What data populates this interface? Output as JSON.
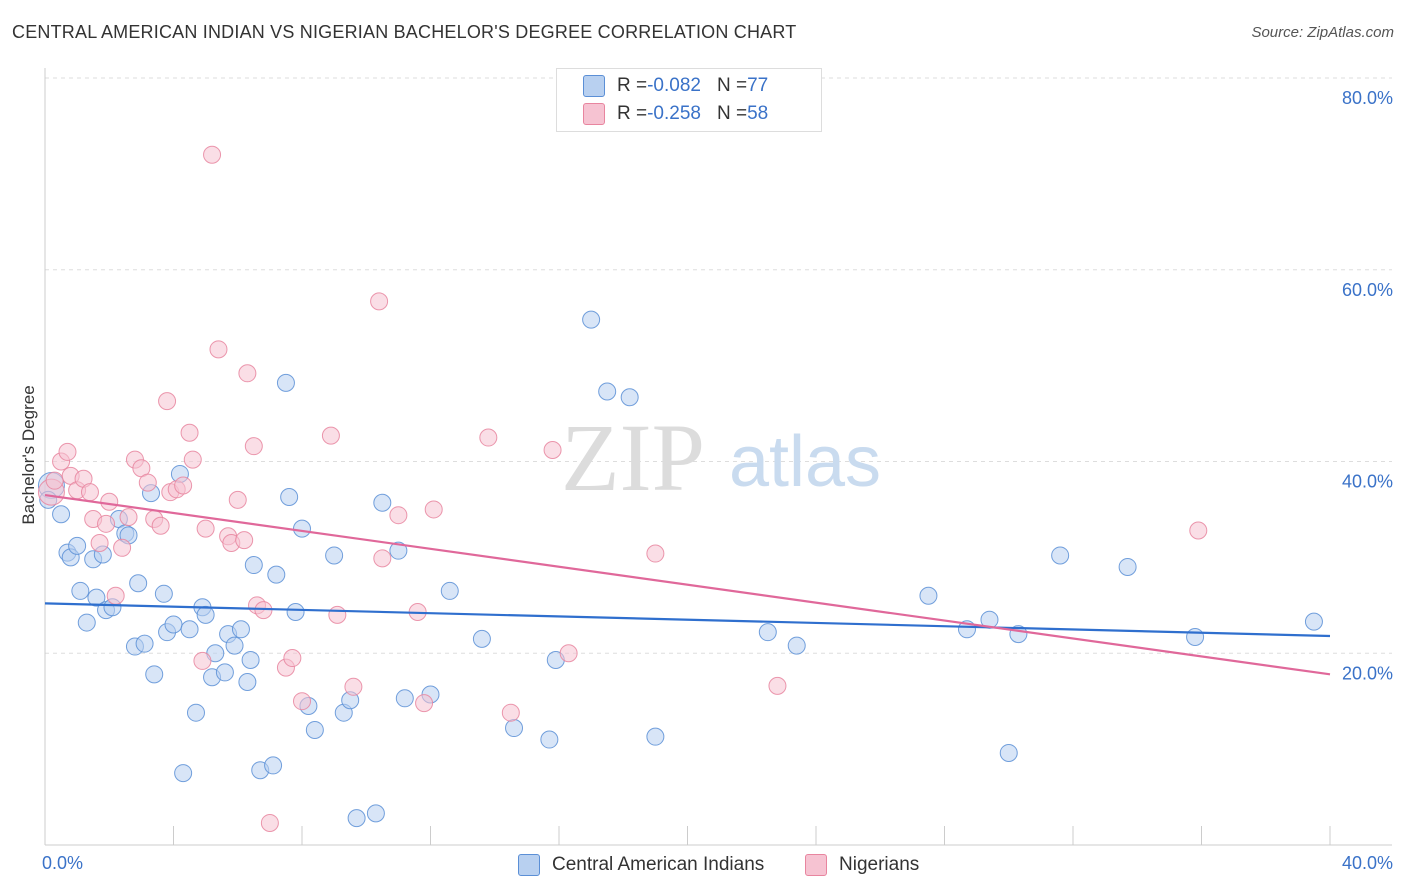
{
  "chart_data": {
    "type": "scatter",
    "title": "CENTRAL AMERICAN INDIAN VS NIGERIAN BACHELOR'S DEGREE CORRELATION CHART",
    "source": "Source: ZipAtlas.com",
    "ylabel": "Bachelor's Degree",
    "xlim": [
      0,
      40
    ],
    "ylim": [
      0,
      80
    ],
    "x_tick_labels": [
      "0.0%",
      "40.0%"
    ],
    "y_tick_labels": [
      "20.0%",
      "40.0%",
      "60.0%",
      "80.0%"
    ],
    "y_tick_values": [
      20,
      40,
      60,
      80
    ],
    "watermark": {
      "zip": "ZIP",
      "atlas": "atlas"
    },
    "legend_stats": [
      {
        "r_label": "R = ",
        "r_value": "-0.082",
        "n_label": "N = ",
        "n_value": "77"
      },
      {
        "r_label": "R = ",
        "r_value": "-0.258",
        "n_label": "N = ",
        "n_value": "58"
      }
    ],
    "series": [
      {
        "name": "Central American Indians",
        "color": "#5b8fd6",
        "fill": "#b8d0f0",
        "trend": [
          [
            0,
            25.2
          ],
          [
            40,
            21.8
          ]
        ],
        "points": [
          [
            0.2,
            37.5
          ],
          [
            0.5,
            34.5
          ],
          [
            0.7,
            30.5
          ],
          [
            0.8,
            30.0
          ],
          [
            1.0,
            31.2
          ],
          [
            1.1,
            26.5
          ],
          [
            1.3,
            23.2
          ],
          [
            1.5,
            29.8
          ],
          [
            1.6,
            25.8
          ],
          [
            1.8,
            30.3
          ],
          [
            1.9,
            24.5
          ],
          [
            2.1,
            24.8
          ],
          [
            2.3,
            34.0
          ],
          [
            2.5,
            32.5
          ],
          [
            2.6,
            32.3
          ],
          [
            2.8,
            20.7
          ],
          [
            2.9,
            27.3
          ],
          [
            3.1,
            21.0
          ],
          [
            3.3,
            36.7
          ],
          [
            3.4,
            17.8
          ],
          [
            3.7,
            26.2
          ],
          [
            3.8,
            22.2
          ],
          [
            4.0,
            23.0
          ],
          [
            4.2,
            38.7
          ],
          [
            4.3,
            7.5
          ],
          [
            4.5,
            22.5
          ],
          [
            4.7,
            13.8
          ],
          [
            4.9,
            24.8
          ],
          [
            5.0,
            24.0
          ],
          [
            5.2,
            17.5
          ],
          [
            5.3,
            20.0
          ],
          [
            5.6,
            18.0
          ],
          [
            5.7,
            22.0
          ],
          [
            5.9,
            20.8
          ],
          [
            6.1,
            22.5
          ],
          [
            6.3,
            17.0
          ],
          [
            6.4,
            19.3
          ],
          [
            6.5,
            29.2
          ],
          [
            6.7,
            7.8
          ],
          [
            7.1,
            8.3
          ],
          [
            7.2,
            28.2
          ],
          [
            7.5,
            48.2
          ],
          [
            7.6,
            36.3
          ],
          [
            7.8,
            24.3
          ],
          [
            8.0,
            33.0
          ],
          [
            8.2,
            14.5
          ],
          [
            8.4,
            12.0
          ],
          [
            9.0,
            30.2
          ],
          [
            9.3,
            13.8
          ],
          [
            9.5,
            15.1
          ],
          [
            9.7,
            2.8
          ],
          [
            10.3,
            3.3
          ],
          [
            10.5,
            35.7
          ],
          [
            11.0,
            30.7
          ],
          [
            11.2,
            15.3
          ],
          [
            12.0,
            15.7
          ],
          [
            12.6,
            26.5
          ],
          [
            13.6,
            21.5
          ],
          [
            14.6,
            12.2
          ],
          [
            15.7,
            11.0
          ],
          [
            15.9,
            19.3
          ],
          [
            17.0,
            54.8
          ],
          [
            17.5,
            47.3
          ],
          [
            18.2,
            46.7
          ],
          [
            19.0,
            11.3
          ],
          [
            22.5,
            22.2
          ],
          [
            23.4,
            20.8
          ],
          [
            27.5,
            26.0
          ],
          [
            28.7,
            22.5
          ],
          [
            29.4,
            23.5
          ],
          [
            30.3,
            22.0
          ],
          [
            30.0,
            9.6
          ],
          [
            31.6,
            30.2
          ],
          [
            33.7,
            29.0
          ],
          [
            35.8,
            21.7
          ],
          [
            39.5,
            23.3
          ],
          [
            0.1,
            36.0
          ]
        ]
      },
      {
        "name": "Nigerians",
        "color": "#e8859f",
        "fill": "#f6c3d2",
        "trend": [
          [
            0,
            36.5
          ],
          [
            40,
            17.8
          ]
        ],
        "points": [
          [
            0.2,
            36.8
          ],
          [
            0.3,
            38.0
          ],
          [
            0.5,
            40.0
          ],
          [
            0.7,
            41.0
          ],
          [
            0.8,
            38.5
          ],
          [
            1.0,
            37.0
          ],
          [
            1.2,
            38.2
          ],
          [
            1.4,
            36.8
          ],
          [
            1.5,
            34.0
          ],
          [
            1.7,
            31.5
          ],
          [
            1.9,
            33.5
          ],
          [
            2.0,
            35.8
          ],
          [
            2.2,
            26.0
          ],
          [
            2.4,
            31.0
          ],
          [
            2.6,
            34.2
          ],
          [
            2.8,
            40.2
          ],
          [
            3.0,
            39.3
          ],
          [
            3.2,
            37.8
          ],
          [
            3.4,
            34.0
          ],
          [
            3.6,
            33.3
          ],
          [
            3.8,
            46.3
          ],
          [
            3.9,
            36.8
          ],
          [
            4.1,
            37.1
          ],
          [
            4.3,
            37.5
          ],
          [
            4.5,
            43.0
          ],
          [
            4.6,
            40.2
          ],
          [
            4.9,
            19.2
          ],
          [
            5.0,
            33.0
          ],
          [
            5.2,
            72.0
          ],
          [
            5.4,
            51.7
          ],
          [
            5.7,
            32.2
          ],
          [
            5.8,
            31.5
          ],
          [
            6.0,
            36.0
          ],
          [
            6.2,
            31.8
          ],
          [
            6.3,
            49.2
          ],
          [
            6.5,
            41.6
          ],
          [
            6.6,
            25.0
          ],
          [
            6.8,
            24.5
          ],
          [
            7.0,
            2.3
          ],
          [
            7.5,
            18.5
          ],
          [
            7.7,
            19.5
          ],
          [
            8.0,
            15.0
          ],
          [
            8.9,
            42.7
          ],
          [
            9.1,
            24.0
          ],
          [
            9.6,
            16.5
          ],
          [
            10.4,
            56.7
          ],
          [
            10.5,
            29.9
          ],
          [
            11.0,
            34.4
          ],
          [
            11.6,
            24.3
          ],
          [
            11.8,
            14.8
          ],
          [
            12.1,
            35.0
          ],
          [
            13.8,
            42.5
          ],
          [
            14.5,
            13.8
          ],
          [
            15.8,
            41.2
          ],
          [
            16.3,
            20.0
          ],
          [
            19.0,
            30.4
          ],
          [
            22.8,
            16.6
          ],
          [
            35.9,
            32.8
          ]
        ]
      }
    ]
  }
}
